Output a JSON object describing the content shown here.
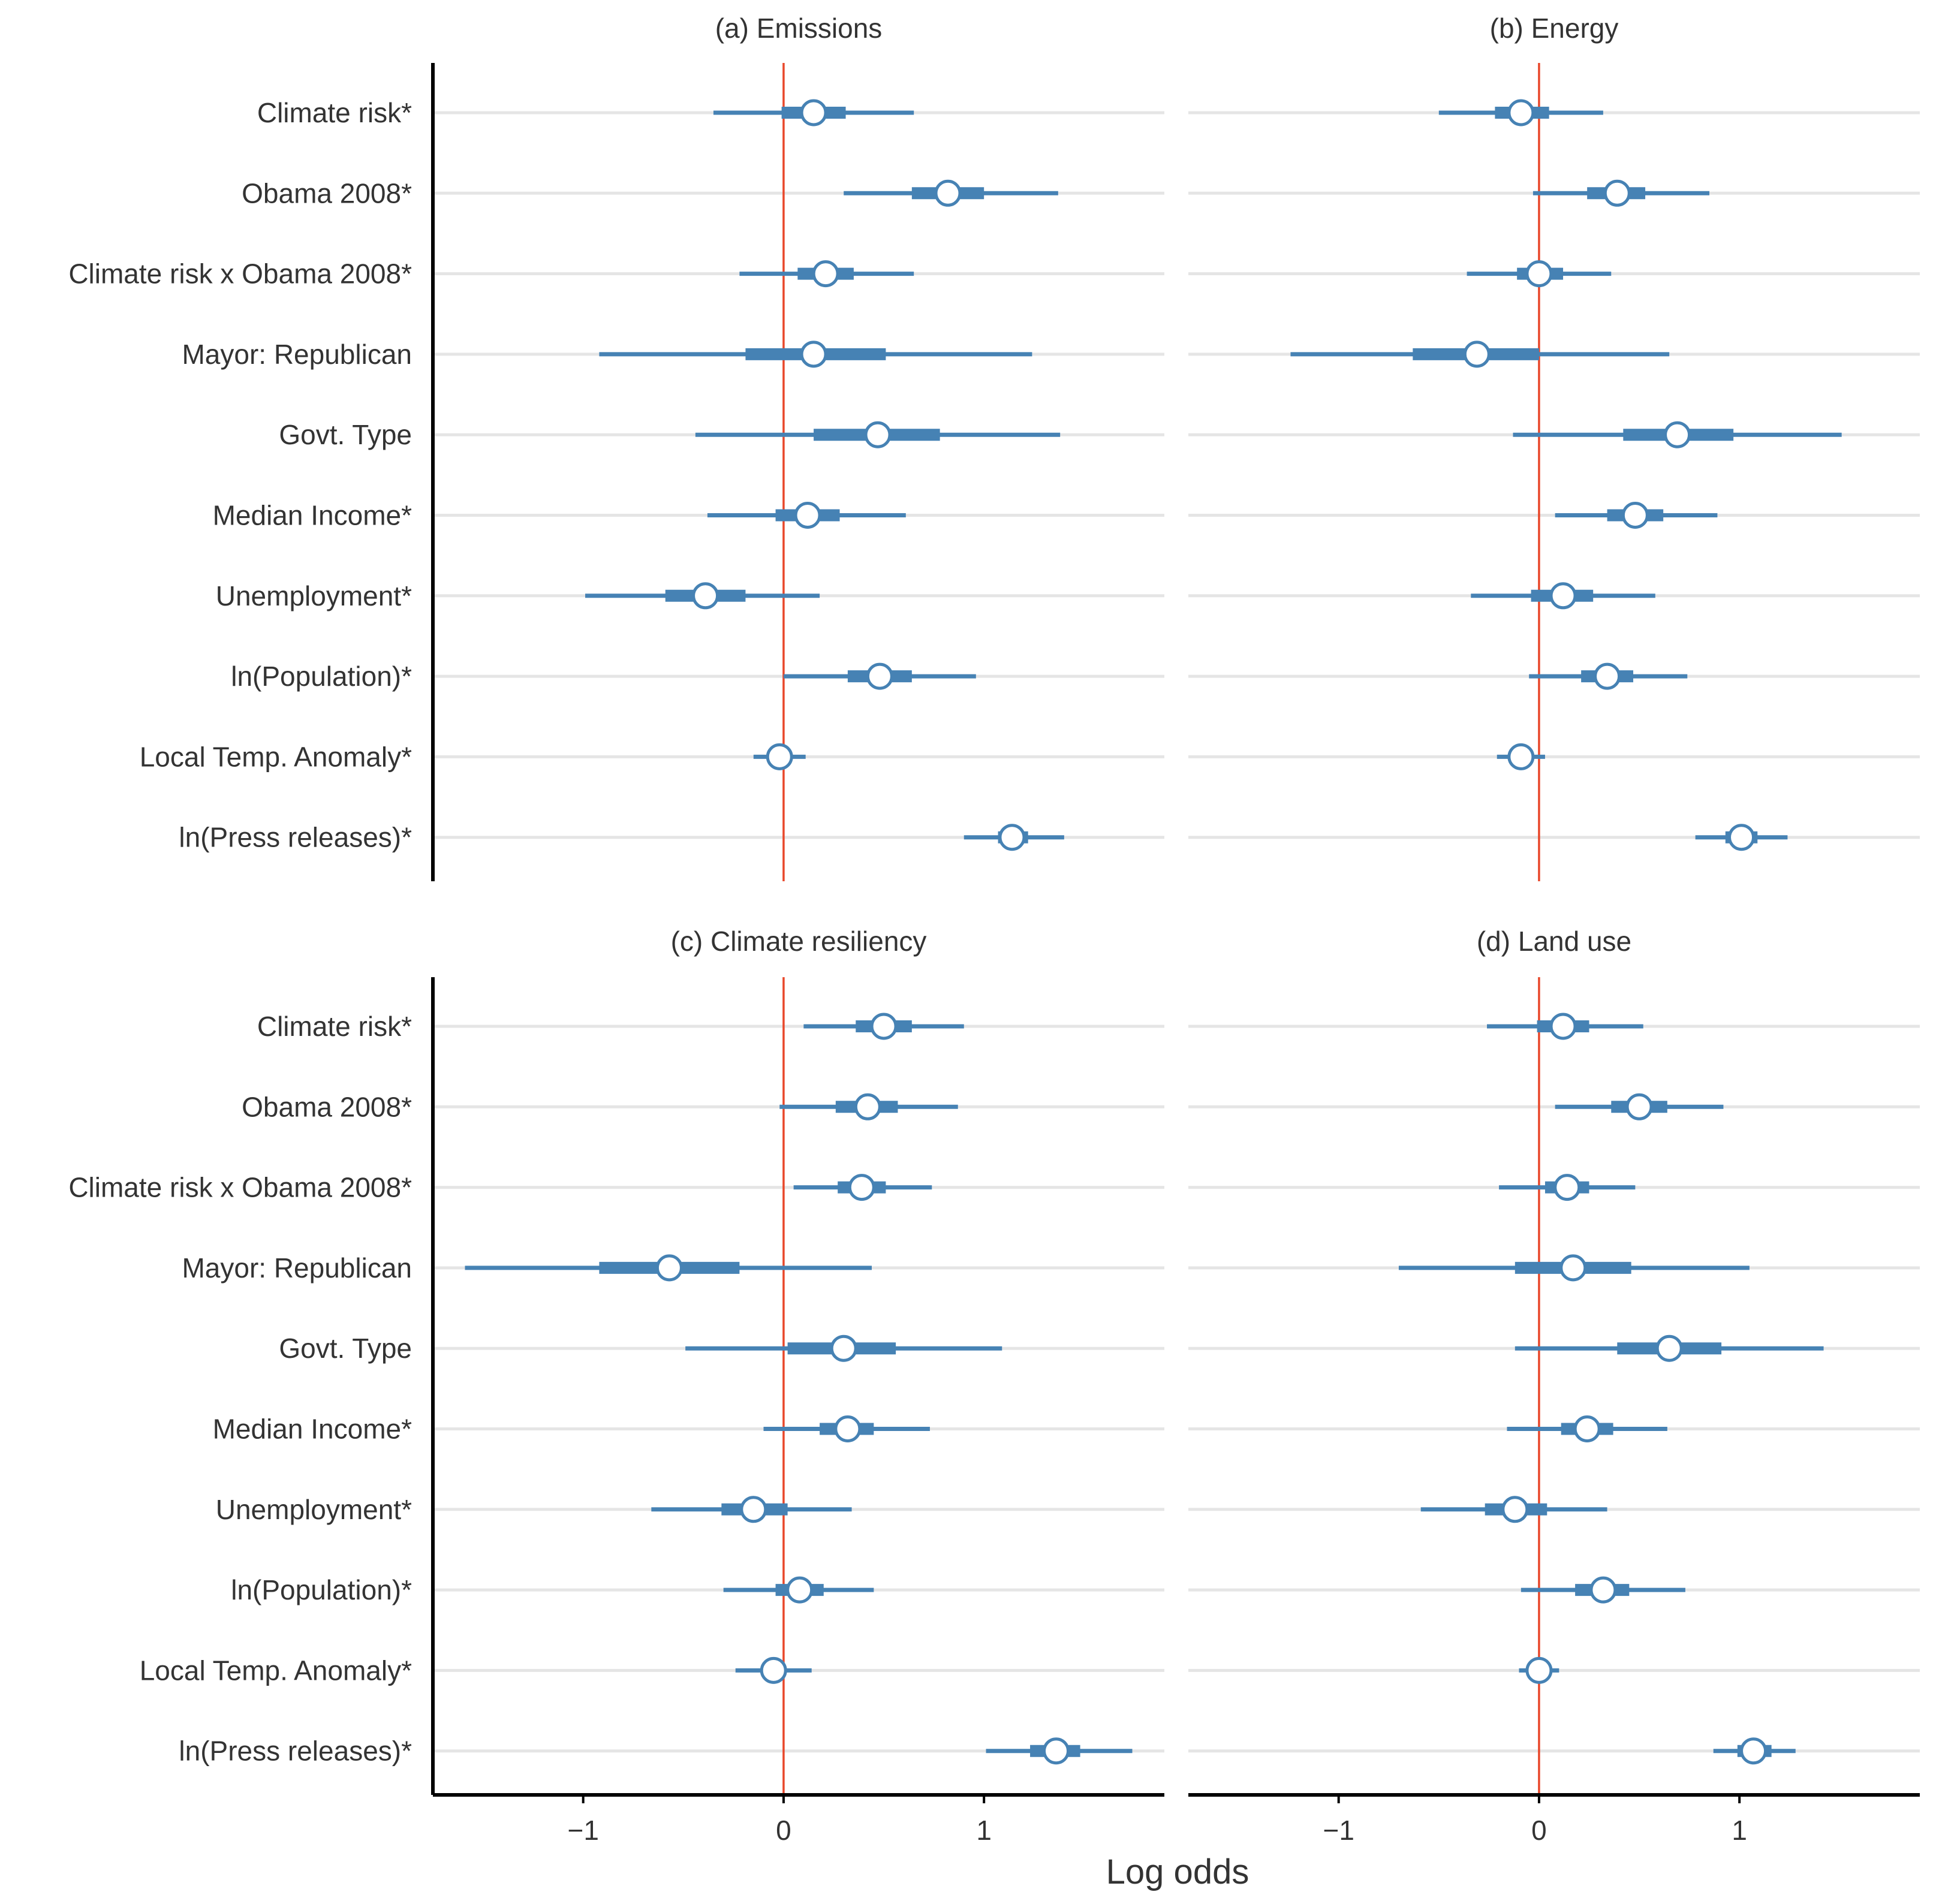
{
  "chart_data": {
    "type": "coefficient-plot",
    "x_axis": {
      "title": "Log odds",
      "range": [
        -1.75,
        1.9
      ],
      "ticks": [
        -1,
        0,
        1
      ],
      "tick_labels": [
        "−1",
        "0",
        "1"
      ]
    },
    "reference_line": 0,
    "interval_note": "thick bar = inner interval, thin line = outer interval, circle = point estimate",
    "variables": [
      "Climate risk*",
      "Obama 2008*",
      "Climate risk x Obama 2008*",
      "Mayor: Republican",
      "Govt. Type",
      "Median Income*",
      "Unemployment*",
      "ln(Population)*",
      "Local Temp. Anomaly*",
      "ln(Press releases)*"
    ],
    "panels": [
      {
        "title": "(a) Emissions",
        "estimates": [
          {
            "est": 0.15,
            "inner": [
              -0.01,
              0.31
            ],
            "outer": [
              -0.35,
              0.65
            ]
          },
          {
            "est": 0.82,
            "inner": [
              0.64,
              1.0
            ],
            "outer": [
              0.3,
              1.37
            ]
          },
          {
            "est": 0.21,
            "inner": [
              0.07,
              0.35
            ],
            "outer": [
              -0.22,
              0.65
            ]
          },
          {
            "est": 0.15,
            "inner": [
              -0.19,
              0.51
            ],
            "outer": [
              -0.92,
              1.24
            ]
          },
          {
            "est": 0.47,
            "inner": [
              0.15,
              0.78
            ],
            "outer": [
              -0.44,
              1.38
            ]
          },
          {
            "est": 0.12,
            "inner": [
              -0.04,
              0.28
            ],
            "outer": [
              -0.38,
              0.61
            ]
          },
          {
            "est": -0.39,
            "inner": [
              -0.59,
              -0.19
            ],
            "outer": [
              -0.99,
              0.18
            ]
          },
          {
            "est": 0.48,
            "inner": [
              0.32,
              0.64
            ],
            "outer": [
              0.0,
              0.96
            ]
          },
          {
            "est": -0.02,
            "inner": [
              -0.06,
              0.02
            ],
            "outer": [
              -0.15,
              0.11
            ]
          },
          {
            "est": 1.14,
            "inner": [
              1.07,
              1.22
            ],
            "outer": [
              0.9,
              1.4
            ]
          }
        ]
      },
      {
        "title": "(b) Energy",
        "estimates": [
          {
            "est": -0.09,
            "inner": [
              -0.22,
              0.05
            ],
            "outer": [
              -0.5,
              0.32
            ]
          },
          {
            "est": 0.39,
            "inner": [
              0.24,
              0.53
            ],
            "outer": [
              -0.03,
              0.85
            ]
          },
          {
            "est": 0.0,
            "inner": [
              -0.11,
              0.12
            ],
            "outer": [
              -0.36,
              0.36
            ]
          },
          {
            "est": -0.31,
            "inner": [
              -0.63,
              0.0
            ],
            "outer": [
              -1.24,
              0.65
            ]
          },
          {
            "est": 0.69,
            "inner": [
              0.42,
              0.97
            ],
            "outer": [
              -0.13,
              1.51
            ]
          },
          {
            "est": 0.48,
            "inner": [
              0.34,
              0.62
            ],
            "outer": [
              0.08,
              0.89
            ]
          },
          {
            "est": 0.12,
            "inner": [
              -0.04,
              0.27
            ],
            "outer": [
              -0.34,
              0.58
            ]
          },
          {
            "est": 0.34,
            "inner": [
              0.21,
              0.47
            ],
            "outer": [
              -0.05,
              0.74
            ]
          },
          {
            "est": -0.09,
            "inner": [
              -0.12,
              -0.05
            ],
            "outer": [
              -0.21,
              0.03
            ]
          },
          {
            "est": 1.01,
            "inner": [
              0.93,
              1.09
            ],
            "outer": [
              0.78,
              1.24
            ]
          }
        ]
      },
      {
        "title": "(c) Climate resiliency",
        "estimates": [
          {
            "est": 0.5,
            "inner": [
              0.36,
              0.64
            ],
            "outer": [
              0.1,
              0.9
            ]
          },
          {
            "est": 0.42,
            "inner": [
              0.26,
              0.57
            ],
            "outer": [
              -0.02,
              0.87
            ]
          },
          {
            "est": 0.39,
            "inner": [
              0.27,
              0.51
            ],
            "outer": [
              0.05,
              0.74
            ]
          },
          {
            "est": -0.57,
            "inner": [
              -0.92,
              -0.22
            ],
            "outer": [
              -1.59,
              0.44
            ]
          },
          {
            "est": 0.3,
            "inner": [
              0.02,
              0.56
            ],
            "outer": [
              -0.49,
              1.09
            ]
          },
          {
            "est": 0.32,
            "inner": [
              0.18,
              0.45
            ],
            "outer": [
              -0.1,
              0.73
            ]
          },
          {
            "est": -0.15,
            "inner": [
              -0.31,
              0.02
            ],
            "outer": [
              -0.66,
              0.34
            ]
          },
          {
            "est": 0.08,
            "inner": [
              -0.04,
              0.2
            ],
            "outer": [
              -0.3,
              0.45
            ]
          },
          {
            "est": -0.05,
            "inner": [
              -0.09,
              -0.01
            ],
            "outer": [
              -0.24,
              0.14
            ]
          },
          {
            "est": 1.36,
            "inner": [
              1.23,
              1.48
            ],
            "outer": [
              1.01,
              1.74
            ]
          }
        ]
      },
      {
        "title": "(d) Land use",
        "estimates": [
          {
            "est": 0.12,
            "inner": [
              -0.01,
              0.25
            ],
            "outer": [
              -0.26,
              0.52
            ]
          },
          {
            "est": 0.5,
            "inner": [
              0.36,
              0.64
            ],
            "outer": [
              0.08,
              0.92
            ]
          },
          {
            "est": 0.14,
            "inner": [
              0.03,
              0.25
            ],
            "outer": [
              -0.2,
              0.48
            ]
          },
          {
            "est": 0.17,
            "inner": [
              -0.12,
              0.46
            ],
            "outer": [
              -0.7,
              1.05
            ]
          },
          {
            "est": 0.65,
            "inner": [
              0.39,
              0.91
            ],
            "outer": [
              -0.12,
              1.42
            ]
          },
          {
            "est": 0.24,
            "inner": [
              0.11,
              0.37
            ],
            "outer": [
              -0.16,
              0.64
            ]
          },
          {
            "est": -0.12,
            "inner": [
              -0.27,
              0.04
            ],
            "outer": [
              -0.59,
              0.34
            ]
          },
          {
            "est": 0.32,
            "inner": [
              0.18,
              0.45
            ],
            "outer": [
              -0.09,
              0.73
            ]
          },
          {
            "est": 0.0,
            "inner": [
              -0.03,
              0.03
            ],
            "outer": [
              -0.1,
              0.1
            ]
          },
          {
            "est": 1.07,
            "inner": [
              0.99,
              1.16
            ],
            "outer": [
              0.87,
              1.28
            ]
          }
        ]
      }
    ],
    "colors": {
      "estimate": "#4682b4",
      "reference_line": "#e8472a",
      "gridline": "#e5e5e5",
      "axis": "#000000",
      "marker_fill": "#ffffff"
    }
  }
}
